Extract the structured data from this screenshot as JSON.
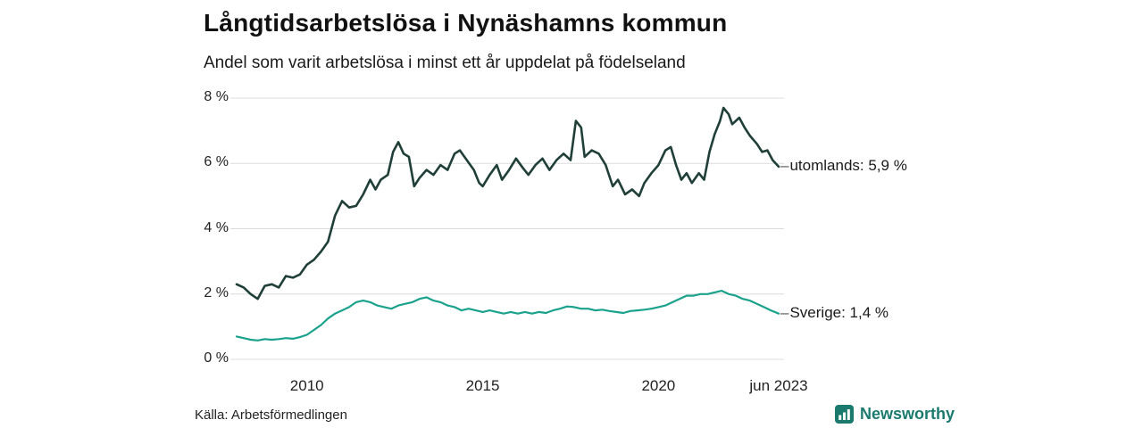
{
  "header": {
    "title": "Långtidsarbetslösa i Nynäshamns kommun",
    "subtitle": "Andel som varit arbetslösa i minst ett år uppdelat på födelseland"
  },
  "footer": {
    "source": "Källa: Arbetsförmedlingen",
    "brand": "Newsworthy"
  },
  "colors": {
    "utomlands_line": "#203f38",
    "sverige_line": "#1aa28c",
    "grid": "#dcdcdc",
    "brand": "#1b7a6e"
  },
  "chart_data": {
    "type": "line",
    "title": "Långtidsarbetslösa i Nynäshamns kommun",
    "subtitle": "Andel som varit arbetslösa i minst ett år uppdelat på födelseland",
    "xlabel": "",
    "ylabel": "",
    "xlim": [
      2008.0,
      2023.42
    ],
    "ylim": [
      0,
      8
    ],
    "grid": "horizontal",
    "legend_position": "right-of-line-ends",
    "y_ticks": [
      {
        "value": 8,
        "label": "8 %"
      },
      {
        "value": 6,
        "label": "6 %"
      },
      {
        "value": 4,
        "label": "4 %"
      },
      {
        "value": 2,
        "label": "2 %"
      },
      {
        "value": 0,
        "label": "0 %"
      }
    ],
    "x_ticks": [
      {
        "value": 2010,
        "label": "2010"
      },
      {
        "value": 2015,
        "label": "2015"
      },
      {
        "value": 2020,
        "label": "2020"
      },
      {
        "value": 2023.42,
        "label": "jun 2023"
      }
    ],
    "series": [
      {
        "name": "utomlands",
        "end_label": "utomlands: 5,9 %",
        "end_value_text": "5,9 %",
        "color": "#203f38",
        "stroke_width": 2.6,
        "points": [
          [
            2008.0,
            2.3
          ],
          [
            2008.2,
            2.2
          ],
          [
            2008.4,
            2.0
          ],
          [
            2008.6,
            1.85
          ],
          [
            2008.8,
            2.25
          ],
          [
            2009.0,
            2.3
          ],
          [
            2009.2,
            2.2
          ],
          [
            2009.4,
            2.55
          ],
          [
            2009.6,
            2.5
          ],
          [
            2009.8,
            2.6
          ],
          [
            2010.0,
            2.9
          ],
          [
            2010.2,
            3.05
          ],
          [
            2010.4,
            3.3
          ],
          [
            2010.6,
            3.6
          ],
          [
            2010.8,
            4.4
          ],
          [
            2011.0,
            4.85
          ],
          [
            2011.2,
            4.65
          ],
          [
            2011.4,
            4.7
          ],
          [
            2011.6,
            5.05
          ],
          [
            2011.8,
            5.5
          ],
          [
            2011.95,
            5.2
          ],
          [
            2012.1,
            5.5
          ],
          [
            2012.3,
            5.65
          ],
          [
            2012.45,
            6.35
          ],
          [
            2012.6,
            6.65
          ],
          [
            2012.75,
            6.3
          ],
          [
            2012.9,
            6.2
          ],
          [
            2013.05,
            5.3
          ],
          [
            2013.2,
            5.55
          ],
          [
            2013.4,
            5.8
          ],
          [
            2013.6,
            5.65
          ],
          [
            2013.8,
            5.95
          ],
          [
            2014.0,
            5.8
          ],
          [
            2014.2,
            6.3
          ],
          [
            2014.35,
            6.4
          ],
          [
            2014.55,
            6.1
          ],
          [
            2014.75,
            5.8
          ],
          [
            2014.9,
            5.4
          ],
          [
            2015.0,
            5.3
          ],
          [
            2015.2,
            5.65
          ],
          [
            2015.4,
            5.95
          ],
          [
            2015.55,
            5.5
          ],
          [
            2015.75,
            5.8
          ],
          [
            2015.95,
            6.15
          ],
          [
            2016.15,
            5.85
          ],
          [
            2016.3,
            5.65
          ],
          [
            2016.5,
            5.95
          ],
          [
            2016.7,
            6.15
          ],
          [
            2016.9,
            5.8
          ],
          [
            2017.1,
            6.1
          ],
          [
            2017.3,
            6.3
          ],
          [
            2017.5,
            6.1
          ],
          [
            2017.65,
            7.3
          ],
          [
            2017.8,
            7.1
          ],
          [
            2017.9,
            6.2
          ],
          [
            2018.1,
            6.4
          ],
          [
            2018.3,
            6.3
          ],
          [
            2018.5,
            5.95
          ],
          [
            2018.7,
            5.3
          ],
          [
            2018.85,
            5.5
          ],
          [
            2019.05,
            5.05
          ],
          [
            2019.25,
            5.2
          ],
          [
            2019.45,
            5.0
          ],
          [
            2019.6,
            5.4
          ],
          [
            2019.8,
            5.7
          ],
          [
            2020.0,
            5.95
          ],
          [
            2020.2,
            6.4
          ],
          [
            2020.35,
            6.5
          ],
          [
            2020.5,
            5.95
          ],
          [
            2020.65,
            5.5
          ],
          [
            2020.8,
            5.7
          ],
          [
            2020.95,
            5.4
          ],
          [
            2021.15,
            5.7
          ],
          [
            2021.3,
            5.5
          ],
          [
            2021.45,
            6.35
          ],
          [
            2021.6,
            6.9
          ],
          [
            2021.75,
            7.3
          ],
          [
            2021.85,
            7.7
          ],
          [
            2022.0,
            7.5
          ],
          [
            2022.1,
            7.2
          ],
          [
            2022.3,
            7.4
          ],
          [
            2022.45,
            7.1
          ],
          [
            2022.6,
            6.85
          ],
          [
            2022.8,
            6.6
          ],
          [
            2022.95,
            6.35
          ],
          [
            2023.1,
            6.4
          ],
          [
            2023.25,
            6.1
          ],
          [
            2023.42,
            5.9
          ]
        ]
      },
      {
        "name": "Sverige",
        "end_label": "Sverige: 1,4 %",
        "end_value_text": "1,4 %",
        "color": "#1aa28c",
        "stroke_width": 2.2,
        "points": [
          [
            2008.0,
            0.7
          ],
          [
            2008.2,
            0.65
          ],
          [
            2008.4,
            0.6
          ],
          [
            2008.6,
            0.58
          ],
          [
            2008.8,
            0.62
          ],
          [
            2009.0,
            0.6
          ],
          [
            2009.2,
            0.62
          ],
          [
            2009.4,
            0.65
          ],
          [
            2009.6,
            0.63
          ],
          [
            2009.8,
            0.68
          ],
          [
            2010.0,
            0.75
          ],
          [
            2010.2,
            0.9
          ],
          [
            2010.4,
            1.05
          ],
          [
            2010.6,
            1.25
          ],
          [
            2010.8,
            1.4
          ],
          [
            2011.0,
            1.5
          ],
          [
            2011.2,
            1.6
          ],
          [
            2011.4,
            1.75
          ],
          [
            2011.6,
            1.8
          ],
          [
            2011.8,
            1.75
          ],
          [
            2012.0,
            1.65
          ],
          [
            2012.2,
            1.6
          ],
          [
            2012.4,
            1.55
          ],
          [
            2012.6,
            1.65
          ],
          [
            2012.8,
            1.7
          ],
          [
            2013.0,
            1.75
          ],
          [
            2013.2,
            1.85
          ],
          [
            2013.4,
            1.9
          ],
          [
            2013.6,
            1.8
          ],
          [
            2013.8,
            1.75
          ],
          [
            2014.0,
            1.65
          ],
          [
            2014.2,
            1.6
          ],
          [
            2014.4,
            1.5
          ],
          [
            2014.6,
            1.55
          ],
          [
            2014.8,
            1.5
          ],
          [
            2015.0,
            1.45
          ],
          [
            2015.2,
            1.5
          ],
          [
            2015.4,
            1.45
          ],
          [
            2015.6,
            1.4
          ],
          [
            2015.8,
            1.45
          ],
          [
            2016.0,
            1.4
          ],
          [
            2016.2,
            1.45
          ],
          [
            2016.4,
            1.4
          ],
          [
            2016.6,
            1.45
          ],
          [
            2016.8,
            1.42
          ],
          [
            2017.0,
            1.5
          ],
          [
            2017.2,
            1.55
          ],
          [
            2017.4,
            1.62
          ],
          [
            2017.6,
            1.6
          ],
          [
            2017.8,
            1.55
          ],
          [
            2018.0,
            1.55
          ],
          [
            2018.2,
            1.5
          ],
          [
            2018.4,
            1.52
          ],
          [
            2018.6,
            1.48
          ],
          [
            2018.8,
            1.45
          ],
          [
            2019.0,
            1.42
          ],
          [
            2019.2,
            1.48
          ],
          [
            2019.4,
            1.5
          ],
          [
            2019.6,
            1.52
          ],
          [
            2019.8,
            1.55
          ],
          [
            2020.0,
            1.6
          ],
          [
            2020.2,
            1.65
          ],
          [
            2020.4,
            1.75
          ],
          [
            2020.6,
            1.85
          ],
          [
            2020.8,
            1.95
          ],
          [
            2021.0,
            1.95
          ],
          [
            2021.2,
            2.0
          ],
          [
            2021.4,
            2.0
          ],
          [
            2021.6,
            2.05
          ],
          [
            2021.8,
            2.1
          ],
          [
            2022.0,
            2.0
          ],
          [
            2022.2,
            1.95
          ],
          [
            2022.4,
            1.85
          ],
          [
            2022.6,
            1.8
          ],
          [
            2022.8,
            1.7
          ],
          [
            2023.0,
            1.6
          ],
          [
            2023.2,
            1.5
          ],
          [
            2023.42,
            1.4
          ]
        ]
      }
    ]
  }
}
